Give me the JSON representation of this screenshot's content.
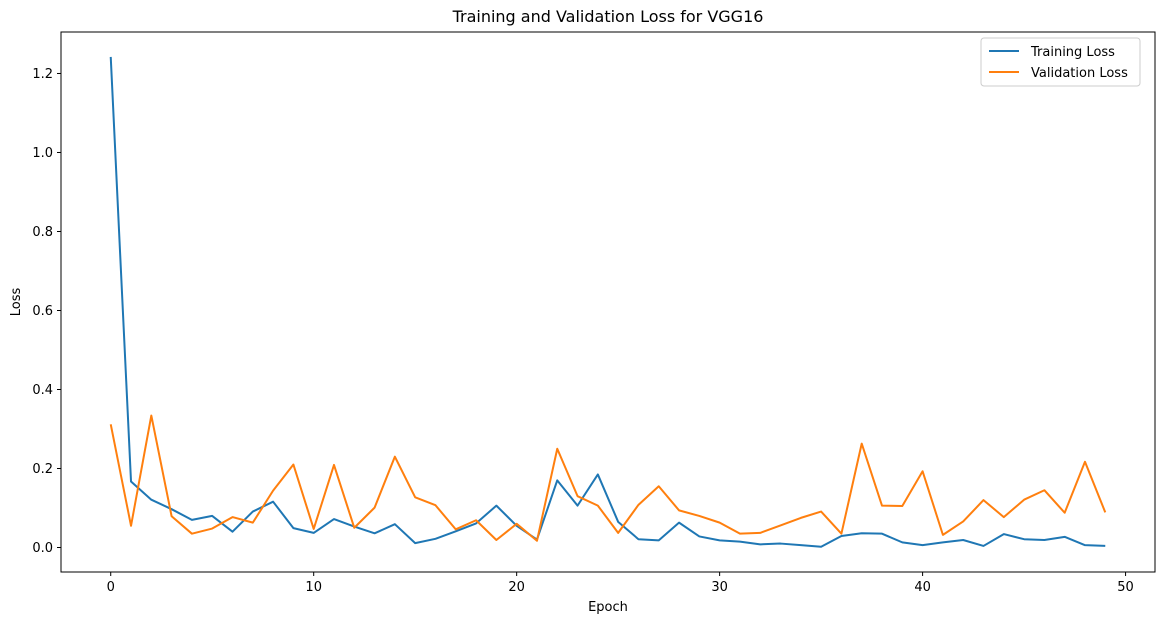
{
  "chart_data": {
    "type": "line",
    "title": "Training and Validation Loss for VGG16",
    "xlabel": "Epoch",
    "ylabel": "Loss",
    "xlim": [
      -2.45,
      51.45
    ],
    "ylim": [
      -0.062,
      1.305
    ],
    "xticks": [
      0,
      10,
      20,
      30,
      40,
      50
    ],
    "xtick_labels": [
      "0",
      "10",
      "20",
      "30",
      "40",
      "50"
    ],
    "yticks": [
      0.0,
      0.2,
      0.4,
      0.6,
      0.8,
      1.0,
      1.2
    ],
    "ytick_labels": [
      "0.0",
      "0.2",
      "0.4",
      "0.6",
      "0.8",
      "1.0",
      "1.2"
    ],
    "grid": false,
    "legend_position": "top-right",
    "x": [
      0,
      1,
      2,
      3,
      4,
      5,
      6,
      7,
      8,
      9,
      10,
      11,
      12,
      13,
      14,
      15,
      16,
      17,
      18,
      19,
      20,
      21,
      22,
      23,
      24,
      25,
      26,
      27,
      28,
      29,
      30,
      31,
      32,
      33,
      34,
      35,
      36,
      37,
      38,
      39,
      40,
      41,
      42,
      43,
      44,
      45,
      46,
      47,
      48,
      49
    ],
    "series": [
      {
        "name": "Training Loss",
        "color": "#1f77b4",
        "values": [
          1.242,
          0.167,
          0.121,
          0.097,
          0.07,
          0.08,
          0.04,
          0.091,
          0.116,
          0.049,
          0.037,
          0.072,
          0.053,
          0.036,
          0.059,
          0.011,
          0.022,
          0.041,
          0.061,
          0.106,
          0.055,
          0.02,
          0.17,
          0.106,
          0.185,
          0.065,
          0.021,
          0.018,
          0.063,
          0.028,
          0.018,
          0.015,
          0.008,
          0.01,
          0.006,
          0.002,
          0.029,
          0.036,
          0.035,
          0.013,
          0.006,
          0.013,
          0.019,
          0.004,
          0.034,
          0.021,
          0.019,
          0.027,
          0.006,
          0.004
        ]
      },
      {
        "name": "Validation Loss",
        "color": "#ff7f0e",
        "values": [
          0.312,
          0.055,
          0.334,
          0.079,
          0.035,
          0.048,
          0.077,
          0.063,
          0.144,
          0.21,
          0.047,
          0.209,
          0.05,
          0.101,
          0.23,
          0.127,
          0.107,
          0.046,
          0.069,
          0.019,
          0.06,
          0.017,
          0.25,
          0.13,
          0.106,
          0.037,
          0.108,
          0.155,
          0.094,
          0.08,
          0.063,
          0.035,
          0.037,
          0.056,
          0.075,
          0.091,
          0.035,
          0.263,
          0.106,
          0.105,
          0.193,
          0.032,
          0.066,
          0.12,
          0.077,
          0.121,
          0.145,
          0.088,
          0.217,
          0.089
        ]
      }
    ]
  }
}
